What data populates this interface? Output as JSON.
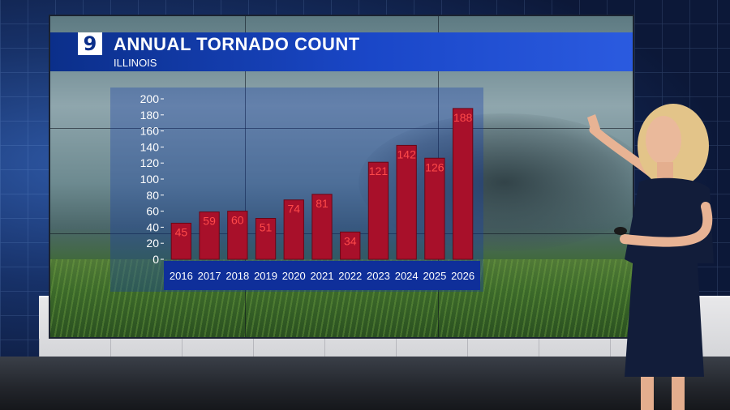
{
  "station": {
    "logo": "9"
  },
  "chart_data": {
    "type": "bar",
    "title": "ANNUAL TORNADO COUNT",
    "subtitle": "ILLINOIS",
    "categories": [
      "2016",
      "2017",
      "2018",
      "2019",
      "2020",
      "2021",
      "2022",
      "2023",
      "2024",
      "2025",
      "2026"
    ],
    "values": [
      45,
      59,
      60,
      51,
      74,
      81,
      34,
      121,
      142,
      126,
      188
    ],
    "ylim": [
      0,
      200
    ],
    "yticks": [
      0,
      20,
      40,
      60,
      80,
      100,
      120,
      140,
      160,
      180,
      200
    ],
    "xlabel": "",
    "ylabel": "",
    "grid": false,
    "data_labels": true
  },
  "colors": {
    "bar": "#a8102a",
    "bar_edge": "#6b0616",
    "label": "#ff4a4a",
    "x_axis_band": "#0f2f9a",
    "title_bar": "#1a47c8"
  }
}
